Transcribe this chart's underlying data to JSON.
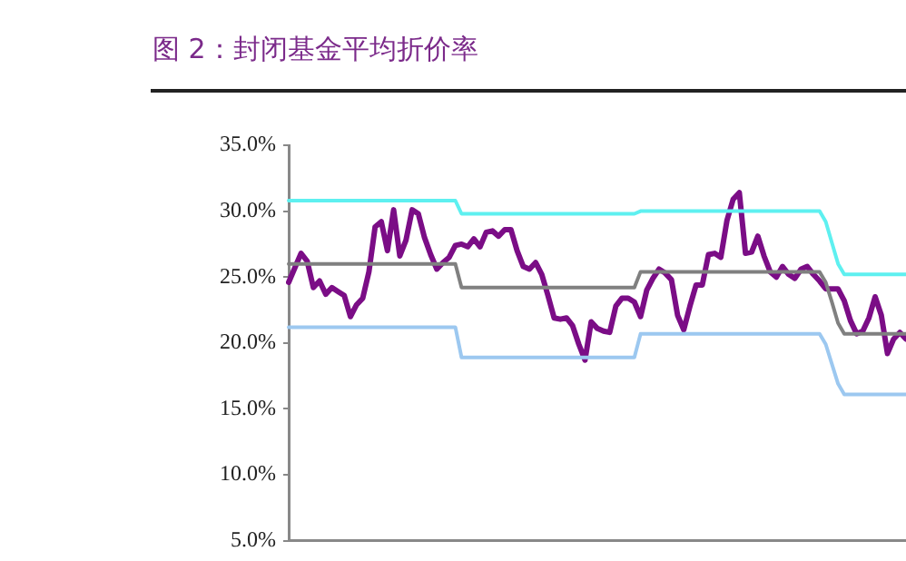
{
  "chart_data": {
    "type": "line",
    "title": "图 2：封闭基金平均折价率",
    "categories": [
      null,
      null,
      null,
      null,
      null,
      null,
      null,
      null,
      null,
      null,
      null,
      null,
      null,
      null,
      null,
      null,
      null,
      null,
      null,
      null,
      null,
      null,
      null,
      null,
      null,
      null,
      null,
      null,
      null,
      null,
      null,
      null,
      null,
      null,
      null,
      null,
      null,
      null,
      null,
      null,
      null,
      null,
      null,
      null,
      null,
      null,
      null,
      null,
      null,
      null,
      null,
      null,
      null,
      null,
      null,
      null,
      null,
      null,
      null,
      null,
      null,
      null,
      null,
      null,
      null,
      null,
      null,
      null,
      null,
      null,
      null,
      null,
      null,
      null,
      null,
      null,
      null,
      null,
      null,
      null,
      null,
      null,
      null,
      null,
      null,
      null,
      null,
      null,
      null,
      null,
      null,
      null,
      null,
      null,
      null,
      null,
      null,
      null,
      null,
      null,
      null
    ],
    "ylim": [
      5,
      35
    ],
    "yticks": [
      {
        "value": 5,
        "label": "5.0%"
      },
      {
        "value": 10,
        "label": "10.0%"
      },
      {
        "value": 15,
        "label": "15.0%"
      },
      {
        "value": 20,
        "label": "20.0%"
      },
      {
        "value": 25,
        "label": "25.0%"
      },
      {
        "value": 30,
        "label": "30.0%"
      },
      {
        "value": 35,
        "label": "35.0%"
      }
    ],
    "tick_labels": "y",
    "marker": "none",
    "line_style": "solid",
    "series": [
      {
        "color": "#5ef0f0",
        "values": [
          30.8,
          30.8,
          30.8,
          30.8,
          30.8,
          30.8,
          30.8,
          30.8,
          30.8,
          30.8,
          30.8,
          30.8,
          30.8,
          30.8,
          30.8,
          30.8,
          30.8,
          30.8,
          30.8,
          30.8,
          30.8,
          30.8,
          30.8,
          30.8,
          30.8,
          30.8,
          30.8,
          30.8,
          29.8,
          29.8,
          29.8,
          29.8,
          29.8,
          29.8,
          29.8,
          29.8,
          29.8,
          29.8,
          29.8,
          29.8,
          29.8,
          29.8,
          29.8,
          29.8,
          29.8,
          29.8,
          29.8,
          29.8,
          29.8,
          29.8,
          29.8,
          29.8,
          29.8,
          29.8,
          29.8,
          29.8,
          29.8,
          30.0,
          30.0,
          30.0,
          30.0,
          30.0,
          30.0,
          30.0,
          30.0,
          30.0,
          30.0,
          30.0,
          30.0,
          30.0,
          30.0,
          30.0,
          30.0,
          30.0,
          30.0,
          30.0,
          30.0,
          30.0,
          30.0,
          30.0,
          30.0,
          30.0,
          30.0,
          30.0,
          30.0,
          30.0,
          30.0,
          29.2,
          27.6,
          26.0,
          25.2,
          25.2,
          25.2,
          25.2,
          25.2,
          25.2,
          25.2,
          25.2,
          25.2,
          25.2,
          25.2
        ]
      },
      {
        "color": "#808080",
        "values": [
          26.0,
          26.0,
          26.0,
          26.0,
          26.0,
          26.0,
          26.0,
          26.0,
          26.0,
          26.0,
          26.0,
          26.0,
          26.0,
          26.0,
          26.0,
          26.0,
          26.0,
          26.0,
          26.0,
          26.0,
          26.0,
          26.0,
          26.0,
          26.0,
          26.0,
          26.0,
          26.0,
          26.0,
          24.2,
          24.2,
          24.2,
          24.2,
          24.2,
          24.2,
          24.2,
          24.2,
          24.2,
          24.2,
          24.2,
          24.2,
          24.2,
          24.2,
          24.2,
          24.2,
          24.2,
          24.2,
          24.2,
          24.2,
          24.2,
          24.2,
          24.2,
          24.2,
          24.2,
          24.2,
          24.2,
          24.2,
          24.2,
          25.4,
          25.4,
          25.4,
          25.4,
          25.4,
          25.4,
          25.4,
          25.4,
          25.4,
          25.4,
          25.4,
          25.4,
          25.4,
          25.4,
          25.4,
          25.4,
          25.4,
          25.4,
          25.4,
          25.4,
          25.4,
          25.4,
          25.4,
          25.4,
          25.4,
          25.4,
          25.4,
          25.4,
          25.4,
          25.4,
          24.6,
          23.1,
          21.5,
          20.7,
          20.7,
          20.7,
          20.7,
          20.7,
          20.7,
          20.7,
          20.7,
          20.7,
          20.7,
          20.7
        ]
      },
      {
        "color": "#9cc8f0",
        "values": [
          21.2,
          21.2,
          21.2,
          21.2,
          21.2,
          21.2,
          21.2,
          21.2,
          21.2,
          21.2,
          21.2,
          21.2,
          21.2,
          21.2,
          21.2,
          21.2,
          21.2,
          21.2,
          21.2,
          21.2,
          21.2,
          21.2,
          21.2,
          21.2,
          21.2,
          21.2,
          21.2,
          21.2,
          18.9,
          18.9,
          18.9,
          18.9,
          18.9,
          18.9,
          18.9,
          18.9,
          18.9,
          18.9,
          18.9,
          18.9,
          18.9,
          18.9,
          18.9,
          18.9,
          18.9,
          18.9,
          18.9,
          18.9,
          18.9,
          18.9,
          18.9,
          18.9,
          18.9,
          18.9,
          18.9,
          18.9,
          18.9,
          20.7,
          20.7,
          20.7,
          20.7,
          20.7,
          20.7,
          20.7,
          20.7,
          20.7,
          20.7,
          20.7,
          20.7,
          20.7,
          20.7,
          20.7,
          20.7,
          20.7,
          20.7,
          20.7,
          20.7,
          20.7,
          20.7,
          20.7,
          20.7,
          20.7,
          20.7,
          20.7,
          20.7,
          20.7,
          20.7,
          19.9,
          18.4,
          16.9,
          16.1,
          16.1,
          16.1,
          16.1,
          16.1,
          16.1,
          16.1,
          16.1,
          16.1,
          16.1,
          16.1
        ]
      },
      {
        "color": "#7b0d86",
        "values": [
          24.6,
          25.7,
          26.8,
          26.2,
          24.2,
          24.7,
          23.7,
          24.2,
          23.9,
          23.6,
          22.0,
          22.9,
          23.4,
          25.4,
          28.8,
          29.2,
          27.0,
          30.1,
          26.6,
          27.8,
          30.1,
          29.8,
          28.0,
          26.7,
          25.6,
          26.1,
          26.5,
          27.4,
          27.5,
          27.3,
          27.9,
          27.3,
          28.4,
          28.5,
          28.1,
          28.6,
          28.6,
          27.0,
          25.8,
          25.6,
          26.1,
          25.2,
          23.6,
          21.9,
          21.8,
          21.9,
          21.3,
          19.9,
          18.7,
          21.6,
          21.1,
          20.9,
          20.8,
          22.8,
          23.4,
          23.4,
          23.1,
          22.0,
          24.0,
          24.9,
          25.6,
          25.3,
          24.8,
          22.1,
          21.0,
          22.8,
          24.4,
          24.4,
          26.7,
          26.8,
          26.5,
          29.3,
          30.9,
          31.4,
          26.8,
          26.9,
          28.1,
          26.6,
          25.4,
          25.0,
          25.8,
          25.2,
          24.9,
          25.6,
          25.8,
          25.2,
          24.7,
          24.1,
          24.1,
          24.1,
          23.2,
          21.7,
          20.7,
          20.9,
          21.9,
          23.5,
          22.1,
          19.2,
          20.3,
          20.8,
          20.3
        ]
      }
    ]
  }
}
